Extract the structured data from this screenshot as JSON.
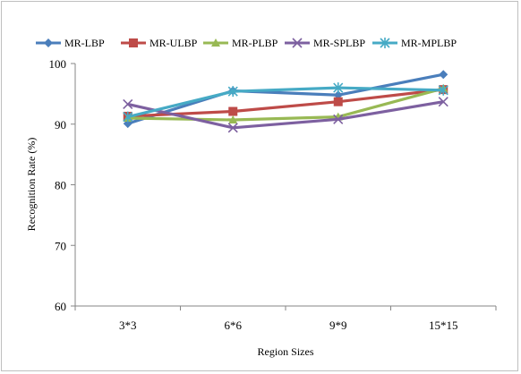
{
  "chart_data": {
    "type": "line",
    "title": "",
    "xlabel": "Region Sizes",
    "ylabel": "Recognition Rate (%)",
    "categories": [
      "3*3",
      "6*6",
      "9*9",
      "15*15"
    ],
    "ylim": [
      60,
      100
    ],
    "yticks": [
      60,
      70,
      80,
      90,
      100
    ],
    "grid": false,
    "legend_position": "top",
    "series": [
      {
        "name": "MR-LBP",
        "color": "#4A7EBB",
        "marker": "diamond",
        "values": [
          90.1,
          95.5,
          94.8,
          98.2
        ]
      },
      {
        "name": "MR-ULBP",
        "color": "#BE4B48",
        "marker": "square",
        "values": [
          91.3,
          92.1,
          93.7,
          95.7
        ]
      },
      {
        "name": "MR-PLBP",
        "color": "#98B954",
        "marker": "triangle",
        "values": [
          91.0,
          90.7,
          91.2,
          95.9
        ]
      },
      {
        "name": "MR-SPLBP",
        "color": "#7D60A0",
        "marker": "x",
        "values": [
          93.3,
          89.4,
          90.8,
          93.7
        ]
      },
      {
        "name": "MR-MPLBP",
        "color": "#46AAC5",
        "marker": "star",
        "values": [
          91.2,
          95.4,
          96.0,
          95.6
        ]
      }
    ]
  }
}
